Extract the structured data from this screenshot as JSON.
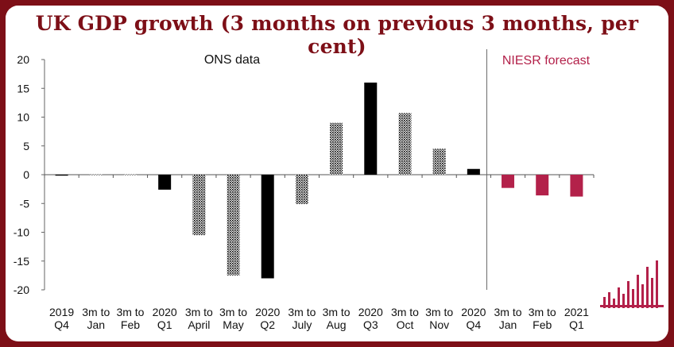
{
  "chart_data": {
    "type": "bar",
    "title": "UK GDP growth (3 months on previous 3 months, per cent)",
    "ylim": [
      -20,
      20
    ],
    "yticks": [
      20,
      15,
      10,
      5,
      0,
      -5,
      -10,
      -15,
      -20
    ],
    "grid": false,
    "categories": [
      [
        "2019",
        "Q4"
      ],
      [
        "3m to",
        "Jan"
      ],
      [
        "3m to",
        "Feb"
      ],
      [
        "2020",
        "Q1"
      ],
      [
        "3m to",
        "April"
      ],
      [
        "3m to",
        "May"
      ],
      [
        "2020",
        "Q2"
      ],
      [
        "3m to",
        "July"
      ],
      [
        "3m to",
        "Aug"
      ],
      [
        "2020",
        "Q3"
      ],
      [
        "3m to",
        "Oct"
      ],
      [
        "3m to",
        "Nov"
      ],
      [
        "2020",
        "Q4"
      ],
      [
        "3m to",
        "Jan"
      ],
      [
        "3m to",
        "Feb"
      ],
      [
        "2021",
        "Q1"
      ]
    ],
    "values": [
      0.0,
      0.1,
      0.1,
      -2.6,
      -10.5,
      -17.5,
      -18.0,
      -5.1,
      9.0,
      16.0,
      10.7,
      4.5,
      1.0,
      -2.3,
      -3.6,
      -3.8
    ],
    "styles": [
      "solid",
      "dotted",
      "dotted",
      "solid",
      "dotted",
      "dotted",
      "solid",
      "dotted",
      "dotted",
      "solid",
      "dotted",
      "dotted",
      "solid",
      "forecast",
      "forecast",
      "forecast"
    ],
    "colors": {
      "ons": "#000000",
      "forecast": "#b3214a",
      "frame": "#7d0f17"
    },
    "annotations": {
      "ons_label": "ONS data",
      "forecast_label": "NIESR forecast"
    }
  }
}
